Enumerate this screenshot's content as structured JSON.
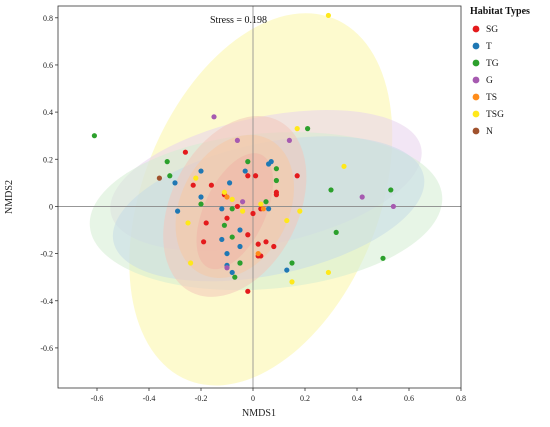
{
  "chart_data": {
    "type": "scatter",
    "xlabel": "NMDS1",
    "ylabel": "NMDS2",
    "xlim": [
      -0.75,
      0.8
    ],
    "ylim": [
      -0.77,
      0.85
    ],
    "xticks": [
      -0.6,
      -0.4,
      -0.2,
      0,
      0.2,
      0.4,
      0.6,
      0.8
    ],
    "xtick_labels": [
      "-0.6",
      "-0.4",
      "-0.2",
      "0",
      "0.2",
      "0.4",
      "0.6",
      "0.8"
    ],
    "yticks": [
      -0.6,
      -0.4,
      -0.2,
      0,
      0.2,
      0.4,
      0.6,
      0.8
    ],
    "ytick_labels": [
      "-0.6",
      "-0.4",
      "-0.2",
      "0",
      "0.2",
      "0.4",
      "0.6",
      "0.8"
    ],
    "annotation": "Stress = 0.198",
    "grid": false,
    "reference_lines": {
      "x": 0,
      "y": 0
    },
    "legend": {
      "title": "Habitat Types",
      "placement": "right",
      "entries": [
        {
          "label": "SG",
          "color": "#e41a1c"
        },
        {
          "label": "T",
          "color": "#1f78b4"
        },
        {
          "label": "TG",
          "color": "#2ca02c"
        },
        {
          "label": "G",
          "color": "#a65ab0"
        },
        {
          "label": "TS",
          "color": "#ff8c1a"
        },
        {
          "label": "TSG",
          "color": "#ffe81a"
        },
        {
          "label": "N",
          "color": "#a0522d"
        }
      ]
    },
    "ellipses": [
      {
        "series": "TSG",
        "color": "#fbf6a6",
        "cx": 0.03,
        "cy": 0.03,
        "rx": 0.75,
        "ry": 0.5,
        "angle": 68
      },
      {
        "series": "G",
        "color": "#e8d2ec",
        "cx": 0.05,
        "cy": 0.11,
        "rx": 0.61,
        "ry": 0.27,
        "angle": 12
      },
      {
        "series": "TG",
        "color": "#d4ecd1",
        "cx": 0.05,
        "cy": -0.02,
        "rx": 0.68,
        "ry": 0.33,
        "angle": 5
      },
      {
        "series": "T",
        "color": "#c7dbe6",
        "cx": 0.06,
        "cy": -0.01,
        "rx": 0.61,
        "ry": 0.28,
        "angle": 12
      },
      {
        "series": "SG",
        "color": "#f2c6b9",
        "cx": -0.07,
        "cy": 0.0,
        "rx": 0.37,
        "ry": 0.27,
        "angle": 63
      },
      {
        "series": "TS",
        "color": "#f5c8a4",
        "cx": -0.07,
        "cy": 0.0,
        "rx": 0.29,
        "ry": 0.23,
        "angle": 63
      },
      {
        "series": "SG-inner",
        "color": "#f0b5a6",
        "cx": -0.07,
        "cy": -0.02,
        "rx": 0.24,
        "ry": 0.13,
        "angle": 65
      }
    ],
    "series": [
      {
        "name": "SG",
        "color": "#e41a1c",
        "points": [
          [
            -0.26,
            0.23
          ],
          [
            -0.23,
            0.09
          ],
          [
            -0.16,
            0.09
          ],
          [
            -0.11,
            0.05
          ],
          [
            -0.18,
            -0.07
          ],
          [
            -0.19,
            -0.15
          ],
          [
            -0.02,
            0.13
          ],
          [
            0.01,
            0.13
          ],
          [
            -0.06,
            0.0
          ],
          [
            -0.1,
            -0.05
          ],
          [
            0.03,
            -0.01
          ],
          [
            0.09,
            0.05
          ],
          [
            0.17,
            0.13
          ],
          [
            0.0,
            -0.03
          ],
          [
            -0.02,
            -0.12
          ],
          [
            0.05,
            -0.15
          ],
          [
            0.08,
            -0.17
          ],
          [
            0.02,
            -0.16
          ],
          [
            0.02,
            -0.21
          ],
          [
            0.03,
            -0.21
          ],
          [
            -0.02,
            -0.36
          ],
          [
            0.09,
            0.06
          ]
        ]
      },
      {
        "name": "T",
        "color": "#1f78b4",
        "points": [
          [
            -0.3,
            0.1
          ],
          [
            -0.29,
            -0.02
          ],
          [
            -0.2,
            0.15
          ],
          [
            -0.09,
            0.1
          ],
          [
            -0.03,
            0.15
          ],
          [
            0.07,
            0.19
          ],
          [
            0.06,
            0.18
          ],
          [
            -0.12,
            -0.01
          ],
          [
            -0.2,
            0.04
          ],
          [
            0.06,
            -0.01
          ],
          [
            -0.12,
            -0.14
          ],
          [
            -0.05,
            -0.17
          ],
          [
            -0.1,
            -0.2
          ],
          [
            -0.1,
            -0.25
          ],
          [
            -0.08,
            -0.28
          ],
          [
            -0.05,
            -0.1
          ],
          [
            0.13,
            -0.27
          ],
          [
            -0.05,
            -0.24
          ]
        ]
      },
      {
        "name": "TG",
        "color": "#2ca02c",
        "points": [
          [
            -0.61,
            0.3
          ],
          [
            -0.33,
            0.19
          ],
          [
            -0.32,
            0.13
          ],
          [
            -0.2,
            0.01
          ],
          [
            -0.02,
            0.19
          ],
          [
            0.09,
            0.16
          ],
          [
            0.09,
            0.11
          ],
          [
            0.21,
            0.33
          ],
          [
            0.3,
            0.07
          ],
          [
            0.53,
            0.07
          ],
          [
            0.32,
            -0.11
          ],
          [
            0.5,
            -0.22
          ],
          [
            -0.08,
            -0.01
          ],
          [
            -0.08,
            -0.13
          ],
          [
            -0.05,
            -0.24
          ],
          [
            -0.07,
            -0.3
          ],
          [
            0.05,
            0.02
          ],
          [
            0.15,
            -0.24
          ],
          [
            -0.11,
            -0.08
          ]
        ]
      },
      {
        "name": "G",
        "color": "#a65ab0",
        "points": [
          [
            -0.15,
            0.38
          ],
          [
            -0.06,
            0.28
          ],
          [
            0.14,
            0.28
          ],
          [
            0.42,
            0.04
          ],
          [
            0.54,
            0.0
          ],
          [
            -0.04,
            0.02
          ],
          [
            -0.1,
            -0.26
          ]
        ]
      },
      {
        "name": "TS",
        "color": "#ff8c1a",
        "points": [
          [
            0.04,
            -0.01
          ],
          [
            0.02,
            -0.2
          ],
          [
            -0.1,
            0.04
          ]
        ]
      },
      {
        "name": "TSG",
        "color": "#ffe81a",
        "points": [
          [
            0.29,
            0.81
          ],
          [
            0.17,
            0.33
          ],
          [
            0.35,
            0.17
          ],
          [
            -0.22,
            0.12
          ],
          [
            -0.11,
            0.06
          ],
          [
            -0.08,
            0.03
          ],
          [
            0.03,
            0.01
          ],
          [
            0.18,
            -0.02
          ],
          [
            -0.25,
            -0.07
          ],
          [
            -0.24,
            -0.24
          ],
          [
            0.13,
            -0.06
          ],
          [
            0.29,
            -0.28
          ],
          [
            0.15,
            -0.32
          ],
          [
            -0.04,
            -0.02
          ]
        ]
      },
      {
        "name": "N",
        "color": "#a0522d",
        "points": [
          [
            -0.36,
            0.12
          ]
        ]
      }
    ]
  }
}
